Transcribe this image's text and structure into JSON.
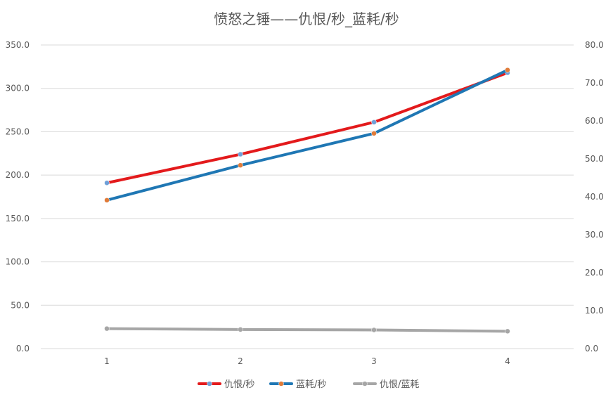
{
  "chart_data": {
    "type": "line",
    "title": "愤怒之锤——仇恨/秒_蓝耗/秒",
    "categories": [
      "1",
      "2",
      "3",
      "4"
    ],
    "y_left": {
      "ylim": [
        0,
        350
      ],
      "ticks": [
        "0.0",
        "50.0",
        "100.0",
        "150.0",
        "200.0",
        "250.0",
        "300.0",
        "350.0"
      ]
    },
    "y_right": {
      "ylim": [
        0,
        80
      ],
      "ticks": [
        "0.0",
        "10.0",
        "20.0",
        "30.0",
        "40.0",
        "50.0",
        "60.0",
        "70.0",
        "80.0"
      ]
    },
    "grid": true,
    "legend_position": "bottom",
    "series": [
      {
        "name": "仇恨/秒",
        "axis": "left",
        "values": [
          191,
          224,
          261,
          318
        ],
        "line_color": "#e31a1c",
        "marker_color": "#6fa0d8"
      },
      {
        "name": "蓝耗/秒",
        "axis": "right",
        "values": [
          39.1,
          48.3,
          56.7,
          73.4
        ],
        "line_color": "#1f77b4",
        "marker_color": "#e07b39"
      },
      {
        "name": "仇恨/蓝耗",
        "axis": "left",
        "values": [
          23,
          22,
          21.5,
          20
        ],
        "line_color": "#a6a6a6",
        "marker_color": "#a6a6a6"
      }
    ]
  }
}
